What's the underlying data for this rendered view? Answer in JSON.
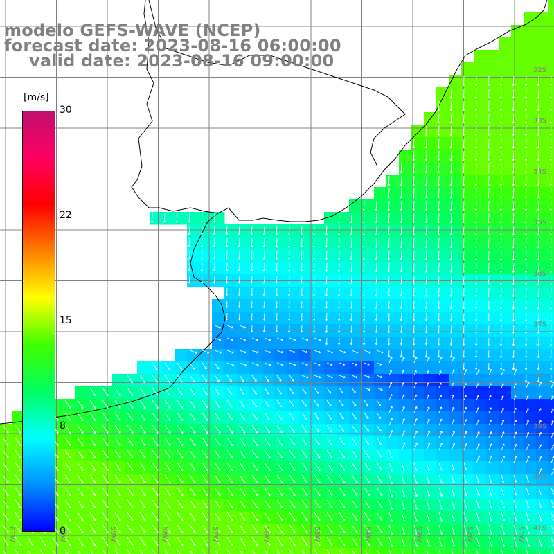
{
  "header": {
    "line1": "modelo GEFS-WAVE (NCEP)",
    "line2": "forecast date: 2023-08-16 06:00:00",
    "line3": "valid date: 2023-08-16 09:00:00"
  },
  "colorbar": {
    "unit": "[m/s]",
    "ticks": [
      "30",
      "22",
      "15",
      "8",
      "0"
    ],
    "tick_values": [
      30,
      22,
      15,
      8,
      0
    ],
    "min": 0,
    "max": 30,
    "colors": [
      "#0000ff",
      "#0090ff",
      "#00ffff",
      "#00ff60",
      "#40ff00",
      "#ffff00",
      "#ff8000",
      "#ff0000",
      "#ff0060",
      "#c01070"
    ]
  },
  "map": {
    "lat_labels": [
      "32S",
      "33S",
      "34S",
      "35S",
      "36S",
      "37S",
      "38S",
      "39S",
      "40S",
      "41S"
    ],
    "lon_labels": [
      "61W",
      "60W",
      "59W",
      "58W",
      "57W",
      "56W",
      "55W",
      "54W",
      "53W",
      "52W",
      "51W"
    ],
    "field": "wind speed and direction"
  }
}
